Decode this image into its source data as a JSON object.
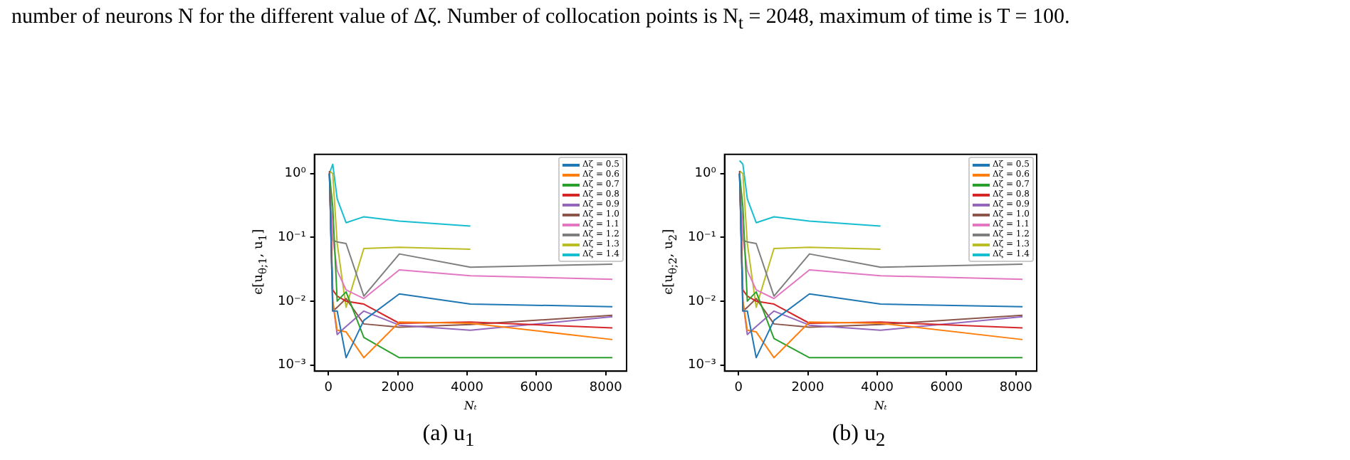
{
  "chart_data": [
    {
      "type": "line",
      "subtitle": "(a) u$_{1}$",
      "xlabel": "Nₜ",
      "ylabel": "ϵ[u$_{θ;1}$, u$_{1}$]",
      "annotations": [
        "number of neurons N for the different value of Δζ. Number of collocation points is N$_{t}$ = 2048, maximum of time is T = 100."
      ],
      "x": [
        32,
        128,
        256,
        512,
        1024,
        2048,
        4096,
        8192
      ],
      "xlim": [
        -400,
        8600
      ],
      "xticks": [
        0,
        2000,
        4000,
        6000,
        8000
      ],
      "ylim": [
        0.0008,
        2
      ],
      "yticks": [
        {
          "value": 0.001,
          "label": "10⁻³"
        },
        {
          "value": 0.01,
          "label": "10⁻²"
        },
        {
          "value": 0.1,
          "label": "10⁻¹"
        },
        {
          "value": 1,
          "label": "10⁰"
        }
      ],
      "log": "y",
      "grid": false,
      "legend": "top right",
      "series": [
        {
          "name": "Δζ = 0.5",
          "color": "#1f77b4",
          "values": [
            1.0,
            0.007,
            0.007,
            0.0013,
            0.005,
            0.013,
            0.009,
            0.0082
          ]
        },
        {
          "name": "Δζ = 0.6",
          "color": "#ff7f0e",
          "values": [
            1.0,
            0.01,
            0.0035,
            0.0033,
            0.0013,
            0.0047,
            0.0045,
            0.0025
          ]
        },
        {
          "name": "Δζ = 0.7",
          "color": "#2ca02c",
          "values": [
            1.0,
            0.3,
            0.01,
            0.014,
            0.0027,
            0.0013,
            0.0013,
            0.0013
          ]
        },
        {
          "name": "Δζ = 0.8",
          "color": "#d62728",
          "values": [
            1.0,
            0.015,
            0.012,
            0.01,
            0.009,
            0.0045,
            0.0047,
            0.0038
          ]
        },
        {
          "name": "Δζ = 0.9",
          "color": "#9467bd",
          "values": [
            1.0,
            0.01,
            0.003,
            0.004,
            0.007,
            0.0042,
            0.0035,
            0.0057
          ]
        },
        {
          "name": "Δζ = 1.0",
          "color": "#8c564b",
          "values": [
            1.1,
            0.007,
            0.008,
            0.011,
            0.0044,
            0.0039,
            0.0043,
            0.006
          ]
        },
        {
          "name": "Δζ = 1.1",
          "color": "#e377c2",
          "values": [
            1.0,
            0.1,
            0.03,
            0.015,
            0.011,
            0.031,
            0.025,
            0.022
          ]
        },
        {
          "name": "Δζ = 1.2",
          "color": "#7f7f7f",
          "values": [
            1.0,
            0.09,
            0.085,
            0.08,
            0.012,
            0.055,
            0.034,
            0.038
          ]
        },
        {
          "name": "Δζ = 1.3",
          "color": "#bcbd22",
          "values": [
            1.1,
            1.0,
            0.08,
            0.008,
            0.067,
            0.07,
            0.065,
            null
          ]
        },
        {
          "name": "Δζ = 1.4",
          "color": "#17becf",
          "values": [
            1.0,
            1.4,
            0.4,
            0.17,
            0.21,
            0.18,
            0.15,
            null
          ]
        }
      ]
    },
    {
      "type": "line",
      "subtitle": "(b) u$_{2}$",
      "xlabel": "Nₜ",
      "ylabel": "ϵ[u$_{θ;2}$, u$_{2}$]",
      "x": [
        32,
        128,
        256,
        512,
        1024,
        2048,
        4096,
        8192
      ],
      "xlim": [
        -400,
        8600
      ],
      "xticks": [
        0,
        2000,
        4000,
        6000,
        8000
      ],
      "ylim": [
        0.0008,
        2
      ],
      "yticks": [
        {
          "value": 0.001,
          "label": "10⁻³"
        },
        {
          "value": 0.01,
          "label": "10⁻²"
        },
        {
          "value": 0.1,
          "label": "10⁻¹"
        },
        {
          "value": 1,
          "label": "10⁰"
        }
      ],
      "log": "y",
      "grid": false,
      "legend": "top right",
      "series": [
        {
          "name": "Δζ = 0.5",
          "color": "#1f77b4",
          "values": [
            1.0,
            0.007,
            0.007,
            0.0013,
            0.005,
            0.013,
            0.009,
            0.0082
          ]
        },
        {
          "name": "Δζ = 0.6",
          "color": "#ff7f0e",
          "values": [
            1.0,
            0.01,
            0.0035,
            0.0033,
            0.0013,
            0.0047,
            0.0045,
            0.0025
          ]
        },
        {
          "name": "Δζ = 0.7",
          "color": "#2ca02c",
          "values": [
            1.0,
            0.3,
            0.01,
            0.014,
            0.0026,
            0.0013,
            0.0013,
            0.0013
          ]
        },
        {
          "name": "Δζ = 0.8",
          "color": "#d62728",
          "values": [
            1.0,
            0.015,
            0.012,
            0.01,
            0.009,
            0.0045,
            0.0047,
            0.0038
          ]
        },
        {
          "name": "Δζ = 0.9",
          "color": "#9467bd",
          "values": [
            1.0,
            0.01,
            0.003,
            0.004,
            0.007,
            0.0042,
            0.0035,
            0.0057
          ]
        },
        {
          "name": "Δζ = 1.0",
          "color": "#8c564b",
          "values": [
            1.1,
            0.007,
            0.008,
            0.011,
            0.0044,
            0.0039,
            0.0043,
            0.006
          ]
        },
        {
          "name": "Δζ = 1.1",
          "color": "#e377c2",
          "values": [
            1.0,
            0.1,
            0.03,
            0.015,
            0.011,
            0.031,
            0.025,
            0.022
          ]
        },
        {
          "name": "Δζ = 1.2",
          "color": "#7f7f7f",
          "values": [
            1.0,
            0.09,
            0.085,
            0.08,
            0.012,
            0.055,
            0.034,
            0.038
          ]
        },
        {
          "name": "Δζ = 1.3",
          "color": "#bcbd22",
          "values": [
            1.1,
            1.0,
            0.08,
            0.008,
            0.067,
            0.07,
            0.065,
            null
          ]
        },
        {
          "name": "Δζ = 1.4",
          "color": "#17becf",
          "values": [
            1.6,
            1.4,
            0.4,
            0.17,
            0.21,
            0.18,
            0.15,
            null
          ]
        }
      ]
    }
  ]
}
